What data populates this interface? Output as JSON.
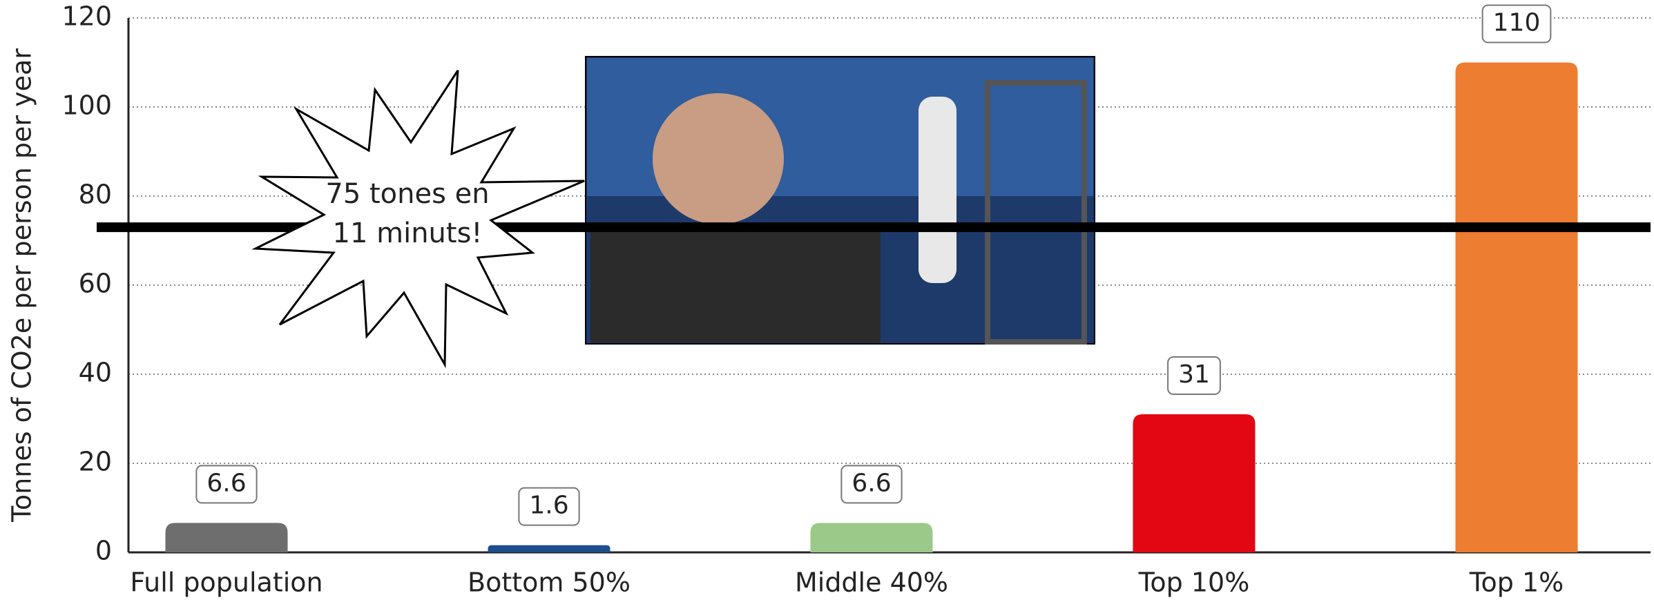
{
  "chart_data": {
    "type": "bar",
    "y_label": "Tonnes of CO2e per person per year",
    "categories": [
      "Full population",
      "Bottom 50%",
      "Middle 40%",
      "Top 10%",
      "Top 1%"
    ],
    "values": [
      6.6,
      1.6,
      6.6,
      31,
      110
    ],
    "colors": [
      "#6e6e6e",
      "#1f4e8c",
      "#9bc98a",
      "#e30613",
      "#ed7d31"
    ],
    "ylim": [
      0,
      120
    ],
    "yticks": [
      0,
      20,
      40,
      60,
      80,
      100,
      120
    ],
    "grid": true,
    "reference_line": 73,
    "annotation": [
      "75 tones en",
      "11 minuts!"
    ]
  }
}
